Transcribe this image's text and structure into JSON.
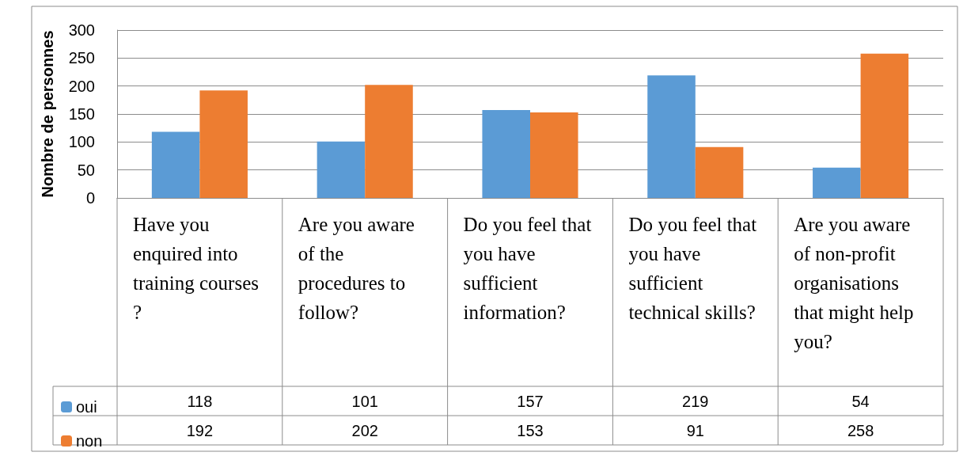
{
  "chart_data": {
    "type": "bar",
    "ylabel": "Nombre de personnes",
    "categories": [
      "Have you enquired into training courses?",
      "Are you aware of the procedures to follow?",
      "Do you feel that you have sufficient information?",
      "Do you feel that you have sufficient technical skills?",
      "Are you aware of non-profit organisations that might help you?"
    ],
    "series": [
      {
        "name": "oui",
        "color": "#5b9bd5",
        "values": [
          118,
          101,
          157,
          219,
          54
        ]
      },
      {
        "name": "non",
        "color": "#ed7d31",
        "values": [
          192,
          202,
          153,
          91,
          258
        ]
      }
    ],
    "ylim": [
      0,
      300
    ],
    "yticks": [
      0,
      50,
      100,
      150,
      200,
      250,
      300
    ],
    "grid": "y",
    "legend": "bottom left",
    "data_labels": true
  }
}
